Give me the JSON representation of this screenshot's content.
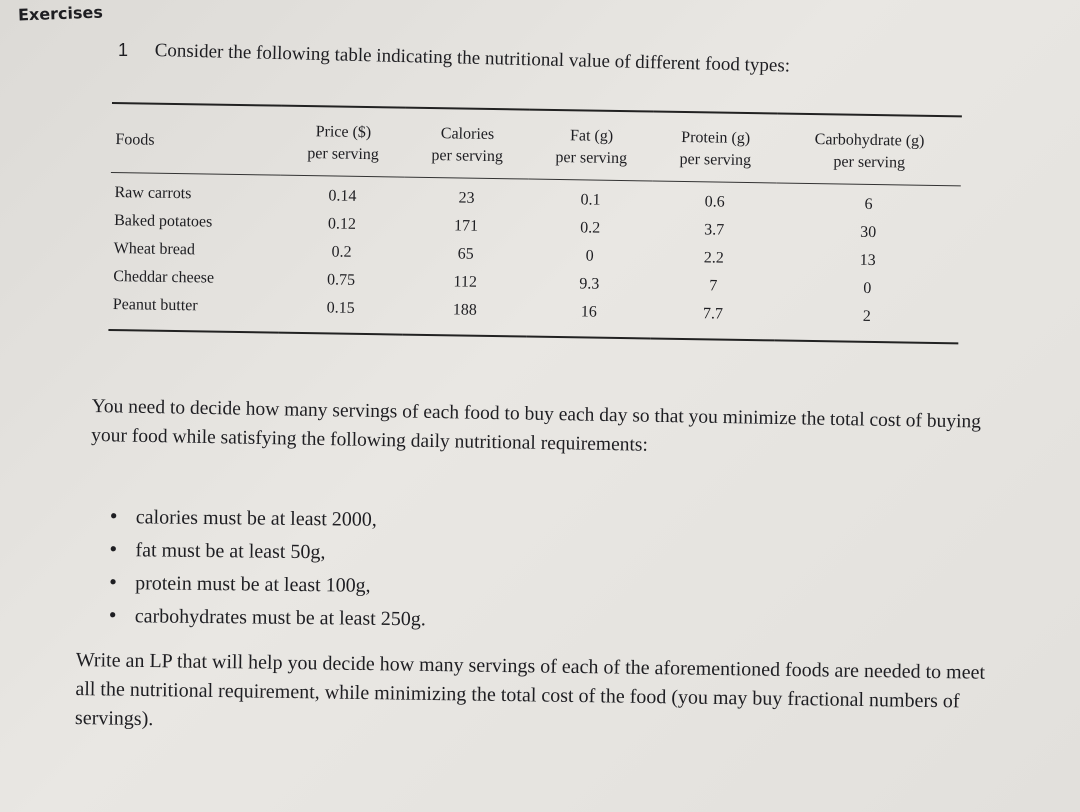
{
  "header": {
    "title": "Exercises"
  },
  "exercise": {
    "number": "1",
    "intro": "Consider the following table indicating the nutritional value of different food types:"
  },
  "table": {
    "columns": [
      [
        "Foods"
      ],
      [
        "Price ($)",
        "per serving"
      ],
      [
        "Calories",
        "per serving"
      ],
      [
        "Fat (g)",
        "per serving"
      ],
      [
        "Protein (g)",
        "per serving"
      ],
      [
        "Carbohydrate (g)",
        "per serving"
      ]
    ],
    "rows": [
      [
        "Raw carrots",
        "0.14",
        "23",
        "0.1",
        "0.6",
        "6"
      ],
      [
        "Baked potatoes",
        "0.12",
        "171",
        "0.2",
        "3.7",
        "30"
      ],
      [
        "Wheat bread",
        "0.2",
        "65",
        "0",
        "2.2",
        "13"
      ],
      [
        "Cheddar cheese",
        "0.75",
        "112",
        "9.3",
        "7",
        "0"
      ],
      [
        "Peanut butter",
        "0.15",
        "188",
        "16",
        "7.7",
        "2"
      ]
    ]
  },
  "paragraph": "You need to decide how many servings of each food to buy each day so that you minimize the total cost of buying your food while satisfying the following daily nutritional requirements:",
  "bullets": [
    "calories must be at least 2000,",
    "fat must be at least 50g,",
    "protein must be at least 100g,",
    "carbohydrates must be at least 250g."
  ],
  "closing": "Write an LP that will help you decide how many servings of each of the aforementioned foods are needed to meet all the nutritional requirement, while minimizing the total cost of the food (you may buy fractional numbers of servings)."
}
